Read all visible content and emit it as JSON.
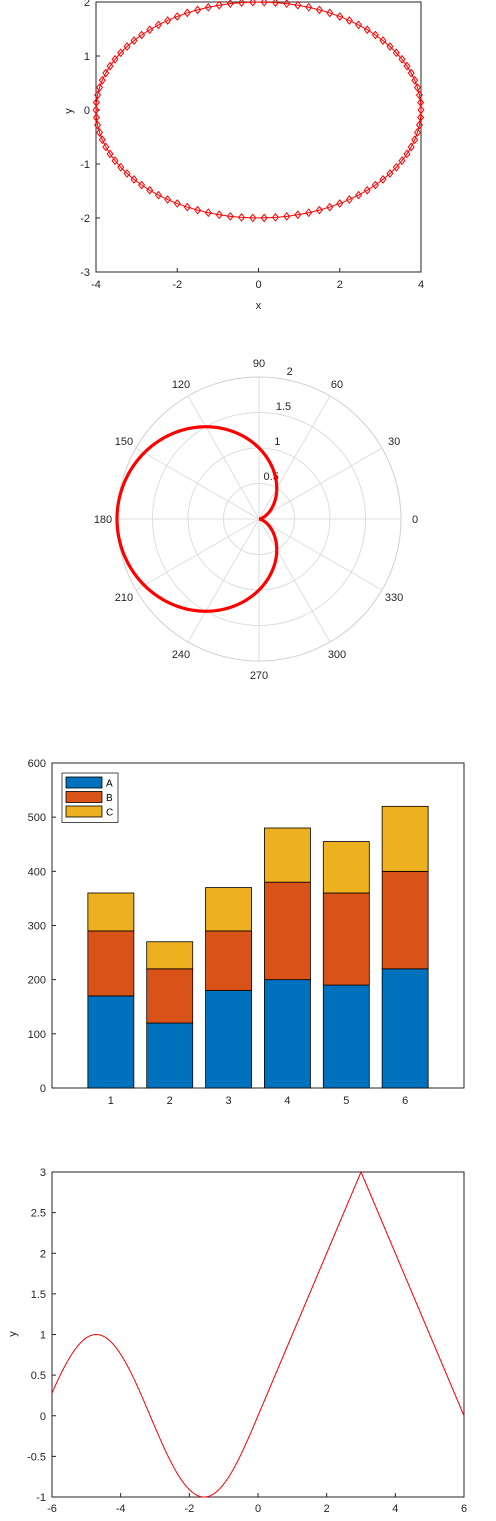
{
  "chart_data": [
    {
      "type": "line",
      "marker": "diamond",
      "xlabel": "x",
      "ylabel": "y",
      "xlim": [
        -4,
        4
      ],
      "ylim": [
        -3,
        2
      ],
      "xticks": [
        -4,
        -2,
        0,
        2,
        4
      ],
      "yticks": [
        -3,
        -2,
        -1,
        0,
        1,
        2
      ],
      "series": [
        {
          "color": "#ff0000",
          "equation": "ellipse x = 4cos t, y = 2sin t",
          "points": 90
        }
      ]
    },
    {
      "type": "polar",
      "rlim": [
        0,
        2
      ],
      "rticks": [
        "0.5",
        "1",
        "1.5",
        "2"
      ],
      "thetaticks": [
        "0",
        "30",
        "60",
        "90",
        "120",
        "150",
        "180",
        "210",
        "240",
        "270",
        "300",
        "330"
      ],
      "series": [
        {
          "color": "#ff0000",
          "equation": "r = 1 - cos(theta)"
        }
      ]
    },
    {
      "type": "bar",
      "stacked": true,
      "categories": [
        "1",
        "2",
        "3",
        "4",
        "5",
        "6"
      ],
      "ylim": [
        0,
        600
      ],
      "yticks": [
        0,
        100,
        200,
        300,
        400,
        500,
        600
      ],
      "legend_position": "top-left",
      "series": [
        {
          "name": "A",
          "color": "#0072bd",
          "values": [
            170,
            120,
            180,
            200,
            190,
            220
          ]
        },
        {
          "name": "B",
          "color": "#d95319",
          "values": [
            120,
            100,
            110,
            180,
            170,
            180
          ]
        },
        {
          "name": "C",
          "color": "#edb120",
          "values": [
            70,
            50,
            80,
            100,
            95,
            120
          ]
        }
      ]
    },
    {
      "type": "line",
      "ylabel": "y",
      "xlim": [
        -6,
        6
      ],
      "ylim": [
        -1,
        3
      ],
      "xticks": [
        -6,
        -4,
        -2,
        0,
        2,
        4,
        6
      ],
      "yticks": [
        "-1",
        "-0.5",
        "0",
        "0.5",
        "1",
        "1.5",
        "2",
        "2.5",
        "3"
      ],
      "series": [
        {
          "color": "#ff0000",
          "equation": "y = sin(x) for x < 0; y = x for 0 <= x <= 3; y = 6 - x for x > 3"
        }
      ]
    }
  ]
}
